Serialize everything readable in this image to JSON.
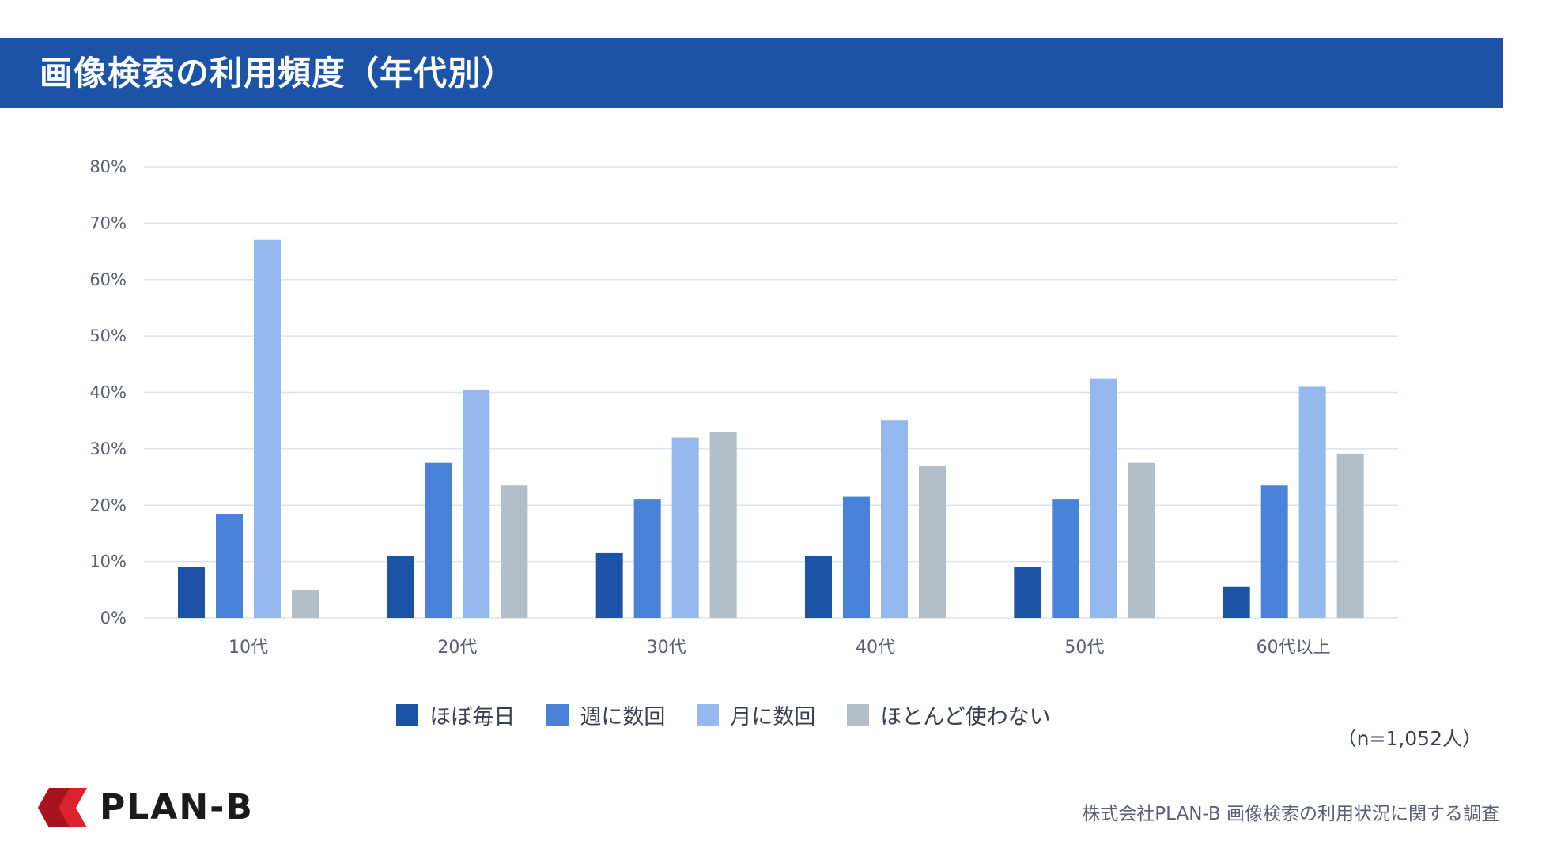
{
  "header": {
    "title": "画像検索の利用頻度（年代別）"
  },
  "chart_data": {
    "type": "bar",
    "title": "画像検索の利用頻度（年代別）",
    "categories": [
      "10代",
      "20代",
      "30代",
      "40代",
      "50代",
      "60代以上"
    ],
    "ylim": [
      0,
      80
    ],
    "yticks": [
      0,
      10,
      20,
      30,
      40,
      50,
      60,
      70,
      80
    ],
    "ytick_suffix": "%",
    "grid": true,
    "legend_position": "bottom",
    "series": [
      {
        "name": "ほぼ毎日",
        "color": "#1c53a7",
        "values": [
          9,
          11,
          11.5,
          11,
          9,
          5.5
        ]
      },
      {
        "name": "週に数回",
        "color": "#4a82d9",
        "values": [
          18.5,
          27.5,
          21,
          21.5,
          21,
          23.5
        ]
      },
      {
        "name": "月に数回",
        "color": "#95b8ee",
        "values": [
          67,
          40.5,
          32,
          35,
          42.5,
          41
        ]
      },
      {
        "name": "ほとんど使わない",
        "color": "#b2bec8",
        "values": [
          5,
          23.5,
          33,
          27,
          27.5,
          29
        ]
      }
    ]
  },
  "sample_note": "（n=1,052人）",
  "logo": {
    "text": "PLAN-B"
  },
  "source": "株式会社PLAN-B  画像検索の利用状況に関する調査"
}
